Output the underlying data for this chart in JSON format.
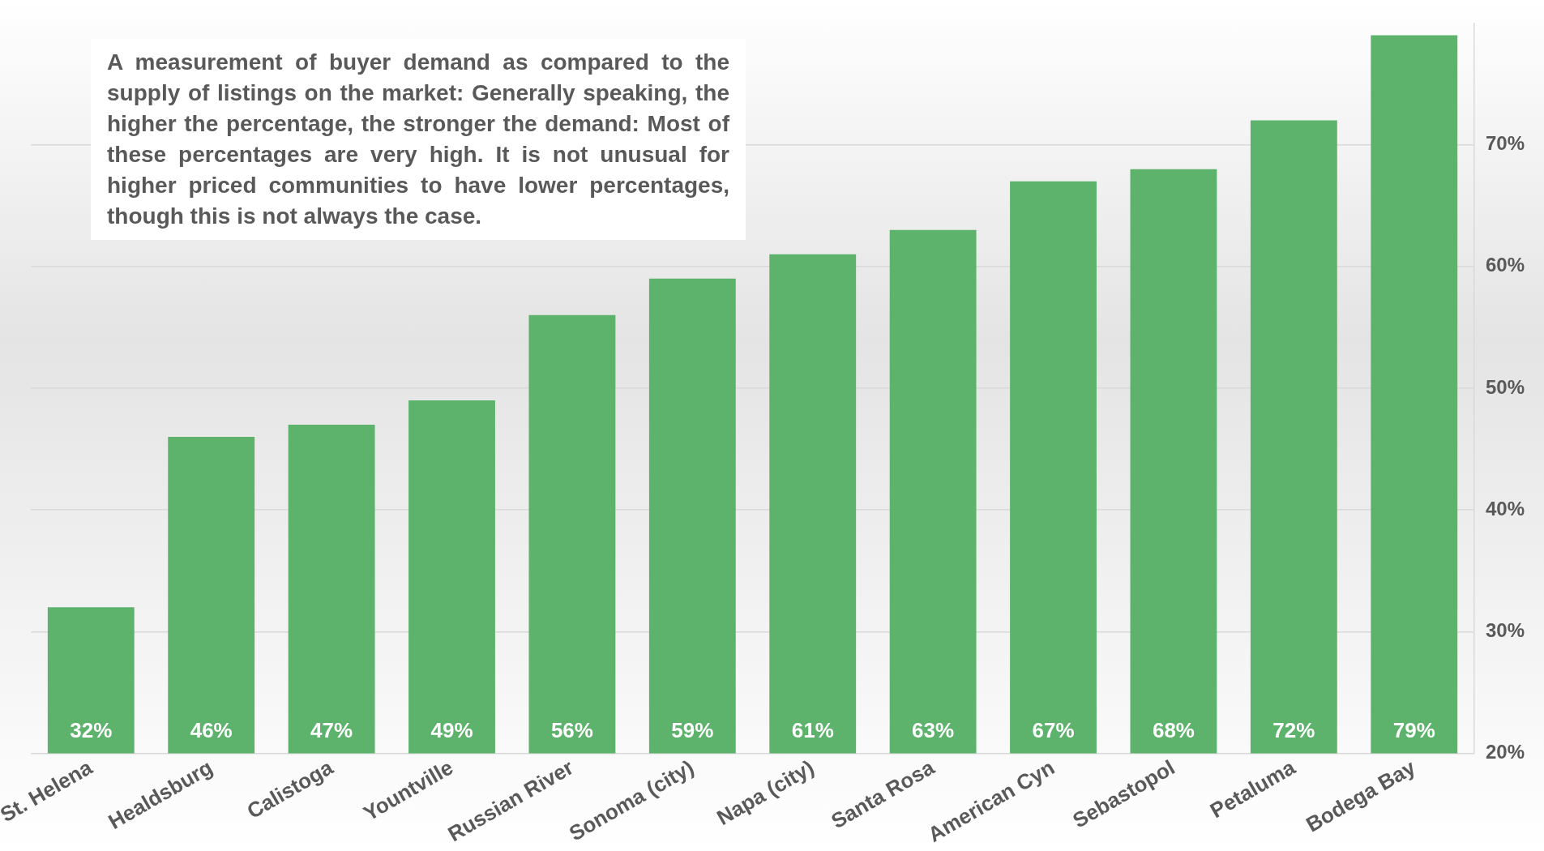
{
  "chart_data": {
    "type": "bar",
    "categories": [
      "St. Helena",
      "Healdsburg",
      "Calistoga",
      "Yountville",
      "Russian River",
      "Sonoma (city)",
      "Napa (city)",
      "Santa Rosa",
      "American Cyn",
      "Sebastopol",
      "Petaluma",
      "Bodega Bay"
    ],
    "values": [
      32,
      46,
      47,
      49,
      56,
      59,
      61,
      63,
      67,
      68,
      72,
      79
    ],
    "color": "#5db36c",
    "ylim": [
      20,
      80
    ],
    "yticks": [
      {
        "value": 20,
        "label": "20%"
      },
      {
        "value": 30,
        "label": "30%"
      },
      {
        "value": 40,
        "label": "40%"
      },
      {
        "value": 50,
        "label": "50%"
      },
      {
        "value": 60,
        "label": "60%"
      },
      {
        "value": 70,
        "label": "70%"
      }
    ],
    "grid": "y",
    "value_labels": [
      "32%",
      "46%",
      "47%",
      "49%",
      "56%",
      "59%",
      "61%",
      "63%",
      "67%",
      "68%",
      "72%",
      "79%"
    ],
    "annotations": [
      "A measurement of buyer demand as compared to the supply of listings on the market: Generally speaking, the higher the percentage, the stronger the demand: Most of these percentages are very high. It is not unusual for higher priced communities to have lower percentages, though this is not always the case."
    ]
  }
}
